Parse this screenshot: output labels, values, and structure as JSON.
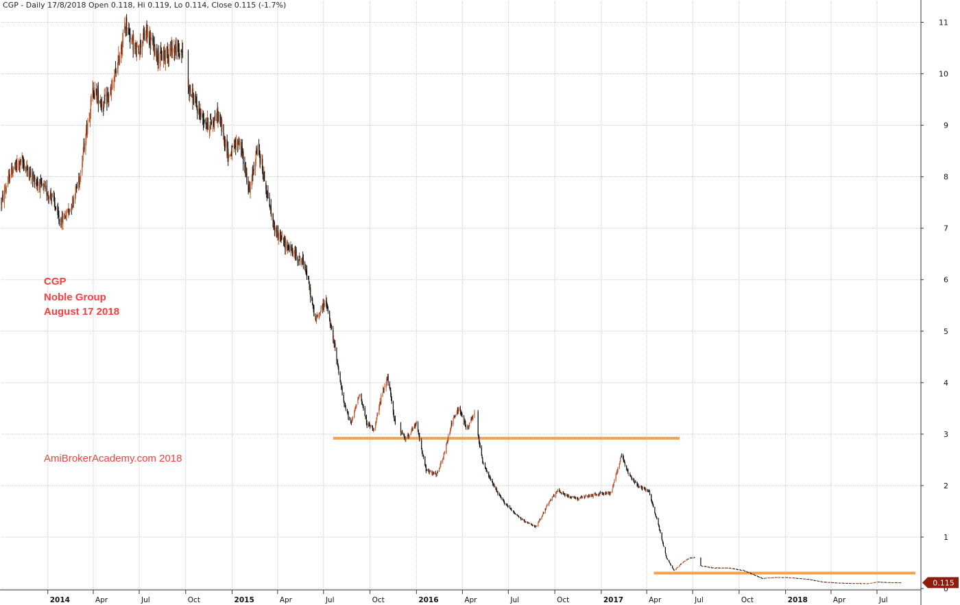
{
  "header": {
    "text": "CGP - Daily 17/8/2018 Open 0.118, Hi 0.119, Lo 0.114, Close 0.115 (-1.7%)"
  },
  "annotation": {
    "line1": "CGP",
    "line2": "Noble Group",
    "line3": "August 17 2018",
    "credit": "AmiBrokerAcademy.com  2018"
  },
  "colors": {
    "up": "#c0562a",
    "down": "#111111",
    "level": "#f5a04a",
    "annotation": "#ff3b3b",
    "grid": "#c8c8c8",
    "last_price_badge": "#8b1e0e"
  },
  "chart_data": {
    "type": "candlestick",
    "title": "CGP - Daily 17/8/2018",
    "ylim": [
      0,
      11.3
    ],
    "yticks": [
      0,
      1,
      2,
      3,
      4,
      5,
      6,
      7,
      8,
      9,
      10,
      11
    ],
    "xlim": [
      "2013-10-01",
      "2018-09-26"
    ],
    "grid": true,
    "last_price": "0.115",
    "ohlc_last": {
      "date": "2018-08-17",
      "open": 0.118,
      "high": 0.119,
      "low": 0.114,
      "close": 0.115,
      "change": "-1.7%"
    },
    "x_ticks": [
      {
        "label": "2014",
        "date": "2014-01-01",
        "year": true
      },
      {
        "label": "Apr",
        "date": "2014-04-01"
      },
      {
        "label": "Jul",
        "date": "2014-07-01"
      },
      {
        "label": "Oct",
        "date": "2014-10-01"
      },
      {
        "label": "2015",
        "date": "2015-01-01",
        "year": true
      },
      {
        "label": "Apr",
        "date": "2015-04-01"
      },
      {
        "label": "Jul",
        "date": "2015-07-01"
      },
      {
        "label": "Oct",
        "date": "2015-10-01"
      },
      {
        "label": "2016",
        "date": "2016-01-01",
        "year": true
      },
      {
        "label": "Apr",
        "date": "2016-04-01"
      },
      {
        "label": "Jul",
        "date": "2016-07-01"
      },
      {
        "label": "Oct",
        "date": "2016-10-01"
      },
      {
        "label": "2017",
        "date": "2017-01-01",
        "year": true
      },
      {
        "label": "Apr",
        "date": "2017-04-01"
      },
      {
        "label": "Jul",
        "date": "2017-07-01"
      },
      {
        "label": "Oct",
        "date": "2017-10-01"
      },
      {
        "label": "2018",
        "date": "2018-01-01",
        "year": true
      },
      {
        "label": "Apr",
        "date": "2018-04-01"
      },
      {
        "label": "Jul",
        "date": "2018-07-01"
      }
    ],
    "price_path": [
      [
        "2013-10-01",
        7.5
      ],
      [
        "2013-10-20",
        8.1
      ],
      [
        "2013-11-10",
        8.3
      ],
      [
        "2013-12-01",
        8.0
      ],
      [
        "2013-12-20",
        7.8
      ],
      [
        "2014-01-10",
        7.6
      ],
      [
        "2014-01-25",
        7.1
      ],
      [
        "2014-02-15",
        7.4
      ],
      [
        "2014-03-05",
        8.0
      ],
      [
        "2014-03-20",
        9.0
      ],
      [
        "2014-04-01",
        9.7
      ],
      [
        "2014-04-20",
        9.4
      ],
      [
        "2014-05-05",
        9.6
      ],
      [
        "2014-05-20",
        10.2
      ],
      [
        "2014-06-05",
        11.0
      ],
      [
        "2014-06-25",
        10.4
      ],
      [
        "2014-07-15",
        10.8
      ],
      [
        "2014-08-10",
        10.3
      ],
      [
        "2014-09-05",
        10.5
      ],
      [
        "2014-09-25",
        10.4
      ],
      [
        "2014-10-05",
        9.8
      ],
      [
        "2014-10-25",
        9.3
      ],
      [
        "2014-11-15",
        9.0
      ],
      [
        "2014-12-05",
        9.2
      ],
      [
        "2014-12-25",
        8.4
      ],
      [
        "2015-01-15",
        8.7
      ],
      [
        "2015-02-05",
        7.7
      ],
      [
        "2015-02-20",
        8.6
      ],
      [
        "2015-03-05",
        8.0
      ],
      [
        "2015-03-25",
        7.0
      ],
      [
        "2015-04-15",
        6.7
      ],
      [
        "2015-05-05",
        6.5
      ],
      [
        "2015-05-25",
        6.3
      ],
      [
        "2015-06-15",
        5.2
      ],
      [
        "2015-07-05",
        5.6
      ],
      [
        "2015-07-25",
        4.6
      ],
      [
        "2015-08-10",
        3.6
      ],
      [
        "2015-08-25",
        3.2
      ],
      [
        "2015-09-10",
        3.8
      ],
      [
        "2015-09-25",
        3.2
      ],
      [
        "2015-10-10",
        3.1
      ],
      [
        "2015-10-25",
        3.8
      ],
      [
        "2015-11-05",
        4.1
      ],
      [
        "2015-11-20",
        3.2
      ],
      [
        "2015-12-10",
        2.9
      ],
      [
        "2016-01-01",
        3.2
      ],
      [
        "2016-01-20",
        2.3
      ],
      [
        "2016-02-10",
        2.2
      ],
      [
        "2016-02-25",
        2.6
      ],
      [
        "2016-03-10",
        3.2
      ],
      [
        "2016-03-25",
        3.5
      ],
      [
        "2016-04-10",
        3.1
      ],
      [
        "2016-04-25",
        3.4
      ],
      [
        "2016-05-10",
        2.5
      ],
      [
        "2016-06-01",
        2.0
      ],
      [
        "2016-06-20",
        1.7
      ],
      [
        "2016-07-10",
        1.5
      ],
      [
        "2016-08-01",
        1.3
      ],
      [
        "2016-08-25",
        1.2
      ],
      [
        "2016-09-15",
        1.6
      ],
      [
        "2016-10-05",
        1.9
      ],
      [
        "2016-10-25",
        1.8
      ],
      [
        "2016-11-15",
        1.75
      ],
      [
        "2016-12-10",
        1.8
      ],
      [
        "2017-01-01",
        1.85
      ],
      [
        "2017-01-20",
        1.85
      ],
      [
        "2017-02-10",
        2.6
      ],
      [
        "2017-02-25",
        2.2
      ],
      [
        "2017-03-15",
        2.0
      ],
      [
        "2017-04-05",
        1.9
      ],
      [
        "2017-04-25",
        1.2
      ],
      [
        "2017-05-10",
        0.6
      ],
      [
        "2017-05-25",
        0.35
      ],
      [
        "2017-06-10",
        0.5
      ],
      [
        "2017-06-25",
        0.6
      ],
      [
        "2017-07-05",
        0.6
      ],
      [
        "2017-07-15",
        0.45
      ],
      [
        "2017-08-10",
        0.4
      ],
      [
        "2017-09-10",
        0.4
      ],
      [
        "2017-10-10",
        0.35
      ],
      [
        "2017-11-15",
        0.2
      ],
      [
        "2017-12-15",
        0.22
      ],
      [
        "2018-01-15",
        0.21
      ],
      [
        "2018-02-15",
        0.18
      ],
      [
        "2018-03-15",
        0.13
      ],
      [
        "2018-04-15",
        0.11
      ],
      [
        "2018-05-15",
        0.1
      ],
      [
        "2018-06-15",
        0.1
      ],
      [
        "2018-07-01",
        0.13
      ],
      [
        "2018-07-20",
        0.12
      ],
      [
        "2018-08-17",
        0.115
      ]
    ],
    "gaps": [
      [
        "2014-09-25",
        "2014-10-05"
      ],
      [
        "2015-11-20",
        "2015-12-01"
      ],
      [
        "2016-04-25",
        "2016-05-02"
      ],
      [
        "2017-07-05",
        "2017-07-15"
      ]
    ],
    "levels": [
      {
        "value": 2.92,
        "from": "2015-07-20",
        "to": "2017-06-05"
      },
      {
        "value": 0.3,
        "from": "2017-04-15",
        "to": "2018-09-15"
      }
    ]
  }
}
